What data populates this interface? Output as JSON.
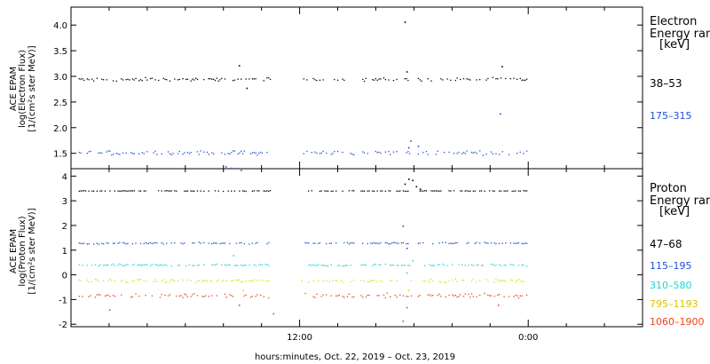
{
  "chart_data": [
    {
      "type": "scatter",
      "panel": "electron",
      "ylabel": [
        "ACE EPAM",
        "log(Electron Flux)",
        "[1/(cm²s ster MeV)]"
      ],
      "ylim": [
        1.2,
        4.35
      ],
      "yticks": [
        1.5,
        2.0,
        2.5,
        3.0,
        3.5,
        4.0
      ],
      "ytick_labels": [
        "1.5",
        "2.0",
        "2.5",
        "3.0",
        "3.5",
        "4.0"
      ],
      "legend_title": [
        "Electron",
        "Energy ran",
        "[keV]"
      ],
      "legend_placement": "right",
      "series": [
        {
          "name": "38–53",
          "color": "#000000",
          "base": 2.95,
          "noise": 0.05,
          "outliers": [
            [
              8.8,
              3.22
            ],
            [
              9.2,
              2.78
            ],
            [
              17.5,
              4.07
            ],
            [
              17.6,
              3.1
            ],
            [
              22.6,
              3.2
            ]
          ]
        },
        {
          "name": "175–315",
          "color": "#1f4fd8",
          "base": 1.52,
          "noise": 0.06,
          "outliers": [
            [
              8.1,
              1.25
            ],
            [
              8.4,
              1.22
            ],
            [
              8.9,
              1.18
            ],
            [
              17.7,
              1.62
            ],
            [
              17.8,
              1.75
            ],
            [
              18.2,
              1.65
            ],
            [
              22.5,
              2.28
            ]
          ]
        }
      ]
    },
    {
      "type": "scatter",
      "panel": "proton",
      "ylabel": [
        "ACE EPAM",
        "log(Proton Flux)",
        "[1/(cm²s ster MeV)]"
      ],
      "ylim": [
        -2.1,
        4.3
      ],
      "yticks": [
        -2,
        -1,
        0,
        1,
        2,
        3,
        4
      ],
      "ytick_labels": [
        "-2",
        "-1",
        "0",
        "1",
        "2",
        "3",
        "4"
      ],
      "legend_title": [
        "Proton",
        "Energy ran",
        "[keV]"
      ],
      "legend_placement": "right",
      "series": [
        {
          "name": "47–68",
          "color": "#000000",
          "base": 3.42,
          "noise": 0.02,
          "outliers": [
            [
              17.5,
              3.7
            ],
            [
              17.7,
              3.9
            ],
            [
              17.9,
              3.85
            ],
            [
              18.1,
              3.6
            ],
            [
              18.3,
              3.5
            ]
          ]
        },
        {
          "name": "115–195",
          "color": "#1f4fd8",
          "base": 1.3,
          "noise": 0.05,
          "outliers": [
            [
              17.4,
              2.0
            ],
            [
              17.6,
              1.1
            ]
          ]
        },
        {
          "name": "310–580",
          "color": "#22d4d4",
          "base": 0.42,
          "noise": 0.06,
          "outliers": [
            [
              8.5,
              0.8
            ],
            [
              17.6,
              0.1
            ],
            [
              17.9,
              0.6
            ]
          ]
        },
        {
          "name": "795–1193",
          "color": "#d7e000",
          "base": -0.22,
          "noise": 0.09,
          "outliers": [
            [
              9.0,
              -0.6
            ],
            [
              17.7,
              -0.6
            ]
          ]
        },
        {
          "name": "1060–1900",
          "color": "#e8431a",
          "base": -0.82,
          "noise": 0.14,
          "outliers": [
            [
              2.0,
              -1.4
            ],
            [
              8.8,
              -1.2
            ],
            [
              10.6,
              -1.55
            ],
            [
              17.4,
              -1.85
            ],
            [
              17.6,
              -1.3
            ],
            [
              22.4,
              -1.2
            ]
          ]
        }
      ]
    }
  ],
  "x_axis": {
    "range_hours": [
      0,
      30
    ],
    "data_segments": [
      [
        0.4,
        10.5
      ],
      [
        12.1,
        14.9
      ],
      [
        15.2,
        17.9
      ],
      [
        18.2,
        23.9
      ]
    ],
    "major_ticks": [
      12,
      24
    ],
    "tick_labels": [
      "12:00",
      "0:00"
    ],
    "minor_ticks": [
      0,
      2,
      4,
      6,
      8,
      10,
      12,
      14,
      16,
      18,
      20,
      22,
      24,
      26,
      28,
      30
    ],
    "xlabel": "hours:minutes, Oct. 22, 2019 – Oct. 23, 2019"
  }
}
